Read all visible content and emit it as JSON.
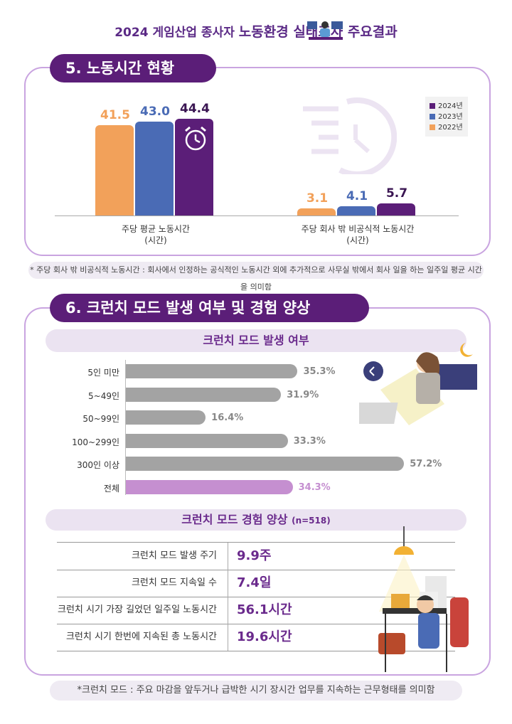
{
  "header": {
    "prefix": "2024 게임산업 종사자",
    "main": "노동환경 실태조사 주요결과"
  },
  "section5": {
    "title": "5. 노동시간 현황",
    "note": "* 주당 회사 밖 비공식적 노동시간 : 회사에서 인정하는 공식적인 노동시간 외에 추가적으로 사무실 밖에서 회사 일을 하는 일주일 평균 시간을 의미함"
  },
  "section6": {
    "title": "6. 크런치 모드 발생 여부 및 경험 양상",
    "sub1": "크런치 모드 발생 여부",
    "sub2": "크런치 모드 경험 양상",
    "sub2_n": "(n=518)",
    "note": "*크런치 모드 : 주요 마감을 앞두거나 급박한 시기 장시간 업무를 지속하는 근무형태를 의미함",
    "table": [
      {
        "label": "크런치 모드 발생 주기",
        "value": "9.9주"
      },
      {
        "label": "크런치 모드 지속일 수",
        "value": "7.4일"
      },
      {
        "label": "크런치 시기 가장 길었던 일주일 노동시간",
        "value": "56.1시간"
      },
      {
        "label": "크런치 시기 한번에 지속된 총 노동시간",
        "value": "19.6시간"
      }
    ]
  },
  "colors": {
    "y2024": "#5b1e78",
    "y2023": "#4a6bb5",
    "y2022": "#f2a15a",
    "grey_bar": "#a3a3a3",
    "total_bar": "#c58fd0",
    "accent": "#6a2a8c"
  },
  "chart_data": [
    {
      "type": "bar",
      "categories": [
        "주당 평균 노동시간\n(시간)",
        "주당 회사 밖 비공식적 노동시간\n(시간)"
      ],
      "category_lines": [
        [
          "주당 평균 노동시간",
          "(시간)"
        ],
        [
          "주당 회사 밖 비공식적 노동시간",
          "(시간)"
        ]
      ],
      "series": [
        {
          "name": "2022년",
          "values": [
            41.5,
            3.1
          ]
        },
        {
          "name": "2023년",
          "values": [
            43.0,
            4.1
          ]
        },
        {
          "name": "2024년",
          "values": [
            44.4,
            5.7
          ]
        }
      ],
      "legend": [
        "2024년",
        "2023년",
        "2022년"
      ],
      "legend_position": "top-right",
      "value_labels": [
        [
          "41.5",
          "3.1"
        ],
        [
          "43.0",
          "4.1"
        ],
        [
          "44.4",
          "5.7"
        ]
      ]
    },
    {
      "type": "bar",
      "orientation": "horizontal",
      "categories": [
        "5인 미만",
        "5~49인",
        "50~99인",
        "100~299인",
        "300인 이상",
        "전체"
      ],
      "values": [
        35.3,
        31.9,
        16.4,
        33.3,
        57.2,
        34.3
      ],
      "value_labels": [
        "35.3%",
        "31.9%",
        "16.4%",
        "33.3%",
        "57.2%",
        "34.3%"
      ],
      "unit": "%"
    }
  ]
}
